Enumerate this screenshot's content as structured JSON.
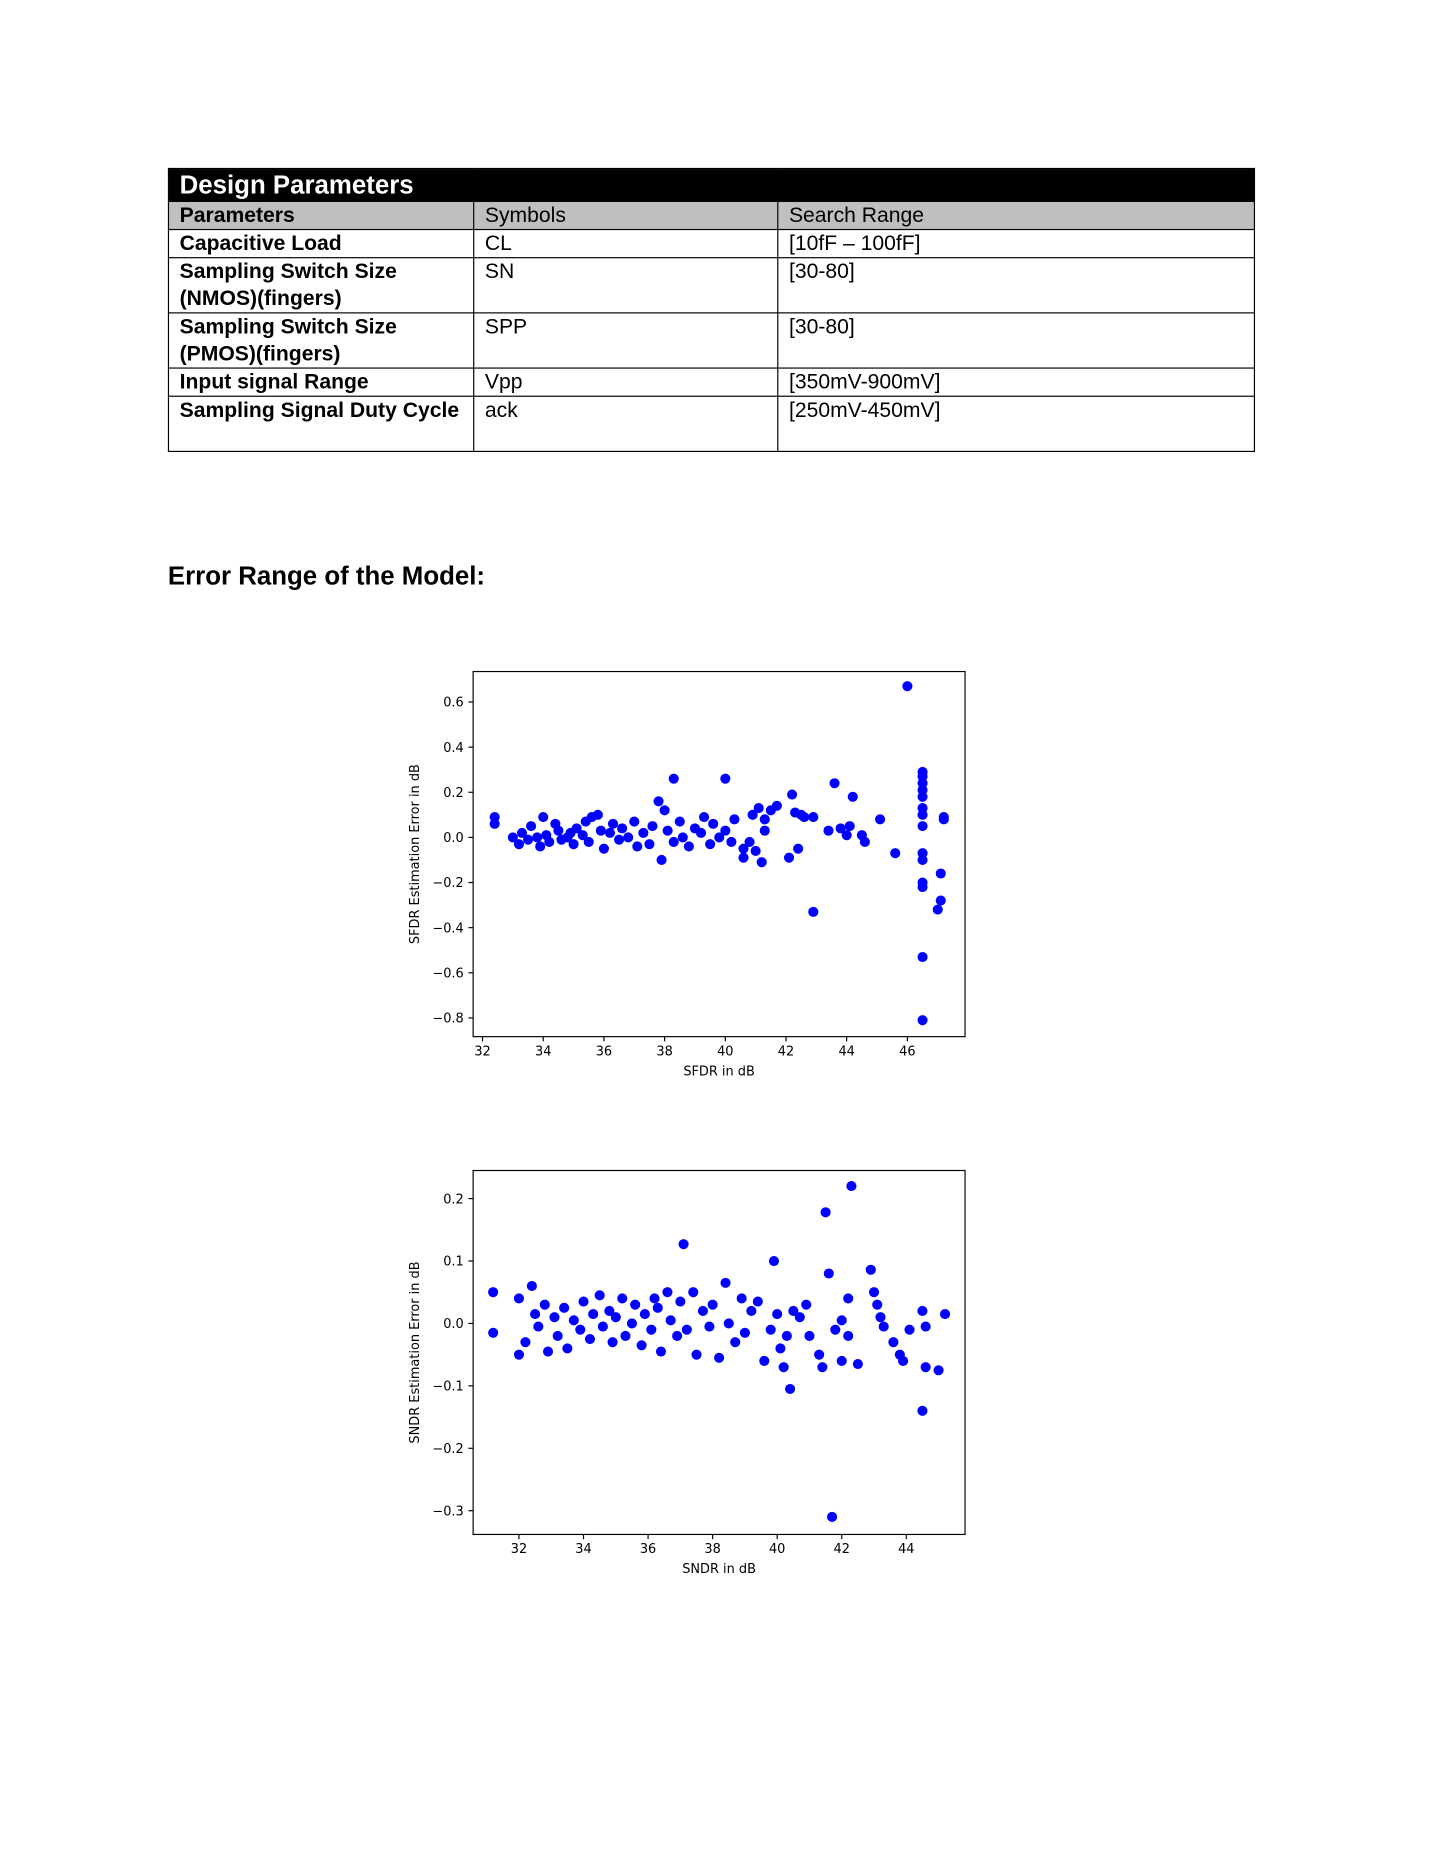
{
  "table": {
    "title": "Design Parameters",
    "header": [
      "Parameters",
      "Symbols",
      "Search Range"
    ],
    "rows": [
      [
        "Capacitive Load",
        "CL",
        "[10fF – 100fF]"
      ],
      [
        "Sampling Switch Size (NMOS)(fingers)",
        "SN",
        "[30-80]"
      ],
      [
        "Sampling Switch Size (PMOS)(fingers)",
        "SPP",
        "[30-80]"
      ],
      [
        "Input signal Range",
        "Vpp",
        "[350mV-900mV]"
      ],
      [
        "Sampling Signal Duty Cycle",
        "ack",
        "[250mV-450mV]"
      ]
    ]
  },
  "heading": "Error Range of the Model:",
  "chart_data": [
    {
      "type": "scatter",
      "x_label": "SFDR in dB",
      "y_label": "SFDR Estimation Error in dB",
      "color": "#0000ff",
      "xlim": [
        31.69,
        47.9
      ],
      "ylim": [
        -0.883,
        0.735
      ],
      "xticks": [
        32,
        34,
        36,
        38,
        40,
        42,
        44,
        46
      ],
      "yticks": [
        {
          "value": -0.8,
          "label": "−0.8"
        },
        {
          "value": -0.6,
          "label": "−0.6"
        },
        {
          "value": -0.4,
          "label": "−0.4"
        },
        {
          "value": -0.2,
          "label": "−0.2"
        },
        {
          "value": 0,
          "label": "0.0"
        },
        0.2,
        0.4,
        0.6
      ],
      "x": [
        32.4,
        32.4,
        38.3,
        40,
        46,
        42.9,
        46.5,
        46.5,
        46.5,
        46.5,
        46.5,
        46.5,
        46.5,
        46.5,
        46.5,
        46.5,
        46.5,
        46.5,
        46.5,
        46.5,
        47,
        47.1,
        47.1,
        47.2,
        47.2,
        43.6,
        44.2,
        45.6,
        45.1,
        44.5,
        44.6,
        44.1,
        43.8,
        43.4,
        44,
        42.2,
        42.1,
        42.4,
        42.6,
        42.9,
        42.5,
        42.3,
        41.7,
        41.5,
        41.2,
        41.3,
        41,
        40.6,
        40.8,
        33,
        33.2,
        33.3,
        33.5,
        33.6,
        33.8,
        33.9,
        34,
        34.1,
        34.2,
        34.4,
        34.5,
        34.6,
        34.8,
        34.9,
        35,
        35.1,
        35.3,
        35.4,
        35.5,
        35.6,
        35.8,
        35.9,
        36,
        36.2,
        36.3,
        36.5,
        36.6,
        36.8,
        37,
        37.1,
        37.3,
        37.5,
        37.6,
        37.8,
        37.9,
        38,
        38.1,
        38.3,
        38.5,
        38.6,
        38.8,
        39,
        39.2,
        39.3,
        39.5,
        39.6,
        39.8,
        40,
        40.2,
        40.3,
        40.6,
        40.9,
        41.1,
        41.3
      ],
      "values": [
        0.09,
        0.06,
        0.26,
        0.26,
        0.67,
        -0.33,
        -0.81,
        -0.53,
        0.29,
        0.27,
        0.24,
        0.21,
        0.18,
        0.13,
        0.1,
        0.05,
        -0.07,
        -0.1,
        -0.2,
        -0.22,
        -0.32,
        -0.28,
        -0.16,
        0.09,
        0.08,
        0.24,
        0.18,
        -0.07,
        0.08,
        0.01,
        -0.02,
        0.05,
        0.04,
        0.03,
        0.01,
        0.19,
        -0.09,
        -0.05,
        0.09,
        0.09,
        0.1,
        0.11,
        0.14,
        0.12,
        -0.11,
        0.08,
        -0.06,
        -0.09,
        -0.02,
        0,
        -0.03,
        0.02,
        -0.01,
        0.05,
        0,
        -0.04,
        0.09,
        0.01,
        -0.02,
        0.06,
        0.03,
        -0.01,
        0,
        0.02,
        -0.03,
        0.04,
        0.01,
        0.07,
        -0.02,
        0.09,
        0.1,
        0.03,
        -0.05,
        0.02,
        0.06,
        -0.01,
        0.04,
        0,
        0.07,
        -0.04,
        0.02,
        -0.03,
        0.05,
        0.16,
        -0.1,
        0.12,
        0.03,
        -0.02,
        0.07,
        0,
        -0.04,
        0.04,
        0.02,
        0.09,
        -0.03,
        0.06,
        0,
        0.03,
        -0.02,
        0.08,
        -0.05,
        0.1,
        0.13,
        0.03
      ]
    },
    {
      "type": "scatter",
      "x_label": "SNDR in dB",
      "y_label": "SNDR Estimation Error in dB",
      "color": "#0000ff",
      "xlim": [
        30.58,
        45.82
      ],
      "ylim": [
        -0.338,
        0.245
      ],
      "xticks": [
        32,
        34,
        36,
        38,
        40,
        42,
        44
      ],
      "yticks": [
        {
          "value": -0.3,
          "label": "−0.3"
        },
        {
          "value": -0.2,
          "label": "−0.2"
        },
        {
          "value": -0.1,
          "label": "−0.1"
        },
        {
          "value": 0,
          "label": "0.0"
        },
        0.1,
        0.2
      ],
      "x": [
        31.2,
        31.2,
        32,
        32,
        32.4,
        36.2,
        37.1,
        39.9,
        40.4,
        41.5,
        42.3,
        41.7,
        41.6,
        42.9,
        43,
        44.5,
        44.5,
        44.6,
        45,
        45.2,
        44.6,
        44.1,
        43.8,
        43.9,
        43.6,
        43.3,
        43.2,
        43.1,
        42.5,
        42,
        41.3,
        41.4,
        42.2,
        42.2,
        41.8,
        42,
        40.2,
        40.5,
        40.9,
        32.2,
        32.5,
        32.6,
        32.8,
        32.9,
        33.1,
        33.2,
        33.4,
        33.5,
        33.7,
        33.9,
        34,
        34.2,
        34.3,
        34.5,
        34.6,
        34.8,
        34.9,
        35,
        35.2,
        35.3,
        35.5,
        35.6,
        35.8,
        35.9,
        36.1,
        36.3,
        36.4,
        36.6,
        36.7,
        36.9,
        37,
        37.2,
        37.4,
        37.5,
        37.7,
        37.9,
        38,
        38.2,
        38.4,
        38.5,
        38.7,
        38.9,
        39,
        39.2,
        39.4,
        39.6,
        39.8,
        40,
        40.1,
        40.3,
        40.7,
        41
      ],
      "values": [
        0.05,
        -0.015,
        -0.05,
        0.04,
        0.06,
        0.04,
        0.127,
        0.1,
        -0.105,
        0.178,
        0.22,
        -0.31,
        0.08,
        0.086,
        0.05,
        -0.14,
        0.02,
        -0.07,
        -0.075,
        0.015,
        -0.005,
        -0.01,
        -0.05,
        -0.06,
        -0.03,
        -0.005,
        0.01,
        0.03,
        -0.065,
        -0.06,
        -0.05,
        -0.07,
        0.04,
        -0.02,
        -0.01,
        0.005,
        -0.07,
        0.02,
        0.03,
        -0.03,
        0.015,
        -0.005,
        0.03,
        -0.045,
        0.01,
        -0.02,
        0.025,
        -0.04,
        0.005,
        -0.01,
        0.035,
        -0.025,
        0.015,
        0.045,
        -0.005,
        0.02,
        -0.03,
        0.01,
        0.04,
        -0.02,
        0,
        0.03,
        -0.035,
        0.015,
        -0.01,
        0.025,
        -0.045,
        0.05,
        0.005,
        -0.02,
        0.035,
        -0.01,
        0.05,
        -0.05,
        0.02,
        -0.005,
        0.03,
        -0.055,
        0.065,
        0,
        -0.03,
        0.04,
        -0.015,
        0.02,
        0.035,
        -0.06,
        -0.01,
        0.015,
        -0.04,
        -0.02,
        0.01,
        -0.02
      ]
    }
  ]
}
